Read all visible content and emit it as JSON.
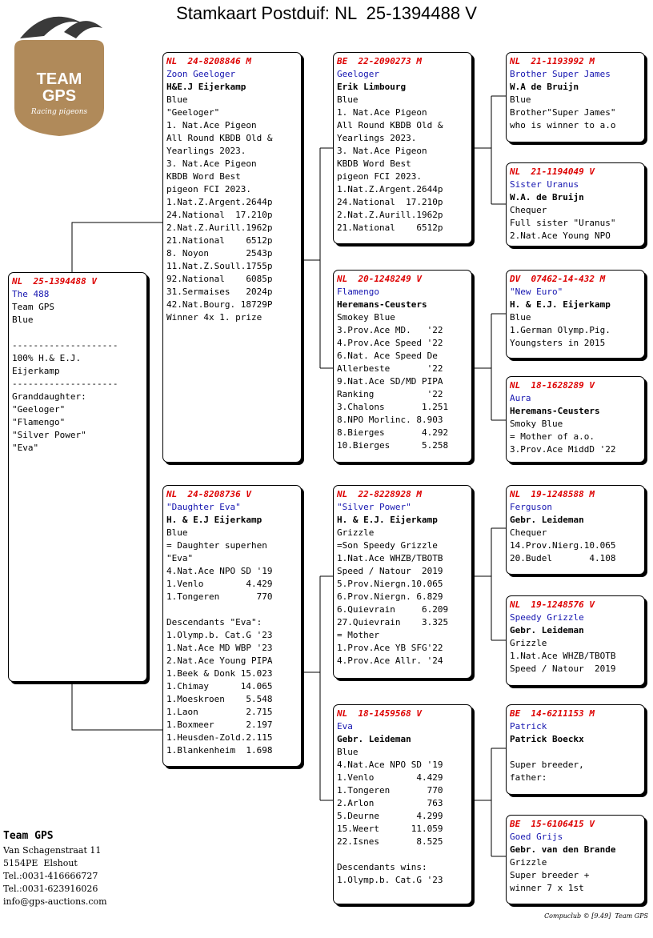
{
  "header": {
    "title": "Stamkaart Postduif: NL  25-1394488 V"
  },
  "logo": {
    "line1": "TEAM",
    "line2": "GPS",
    "tagline": "Racing pigeons"
  },
  "boxes": [
    {
      "ring": "NL  25-1394488 V",
      "name": "The 488",
      "paragraphs": [
        [
          "Team GPS",
          "Blue"
        ],
        [
          "--------------------",
          "100% H.& E.J.",
          "Eijerkamp",
          "--------------------",
          "Granddaughter:",
          "\"Geeloger\"",
          "\"Flamengo\"",
          "\"Silver Power\"",
          "\"Eva\""
        ]
      ]
    },
    {
      "ring": "NL  24-8208846 M",
      "name": "Zoon Geeloger",
      "owner": "H&E.J Eijerkamp",
      "paragraphs": [
        [
          "Blue",
          "\"Geeloger\"",
          "1. Nat.Ace Pigeon",
          "All Round KBDB Old &",
          "Yearlings 2023.",
          "3. Nat.Ace Pigeon",
          "KBDB Word Best",
          "pigeon FCI 2023.",
          "1.Nat.Z.Argent.2644p",
          "24.National  17.210p",
          "2.Nat.Z.Aurill.1962p",
          "21.National    6512p",
          "8. Noyon       2543p",
          "11.Nat.Z.Soull.1755p",
          "92.National    6085p",
          "31.Sermaises   2024p",
          "42.Nat.Bourg. 18729P",
          "Winner 4x 1. prize"
        ]
      ]
    },
    {
      "ring": "NL  24-8208736 V",
      "name": "\"Daughter Eva\"",
      "owner": "H. & E.J Eijerkamp",
      "paragraphs": [
        [
          "Blue",
          "= Daughter superhen",
          "\"Eva\"",
          "4.Nat.Ace NPO SD '19",
          "1.Venlo        4.429",
          "1.Tongeren       770"
        ],
        [
          "Descendants \"Eva\":",
          "1.Olymp.b. Cat.G '23",
          "1.Nat.Ace MD WBP '23",
          "2.Nat.Ace Young PIPA",
          "1.Beek & Donk 15.023",
          "1.Chimay      14.065",
          "1.Moeskroen    5.548",
          "1.Laon         2.715",
          "1.Boxmeer      2.197",
          "1.Heusden-Zold.2.115",
          "1.Blankenheim  1.698"
        ]
      ]
    },
    {
      "ring": "BE  22-2090273 M",
      "name": "Geeloger",
      "owner": "Erik Limbourg",
      "paragraphs": [
        [
          "Blue",
          "1. Nat.Ace Pigeon",
          "All Round KBDB Old &",
          "Yearlings 2023.",
          "3. Nat.Ace Pigeon",
          "KBDB Word Best",
          "pigeon FCI 2023.",
          "1.Nat.Z.Argent.2644p",
          "24.National  17.210p",
          "2.Nat.Z.Aurill.1962p",
          "21.National    6512p"
        ]
      ]
    },
    {
      "ring": "NL  20-1248249 V",
      "name": "Flamengo",
      "owner": "Heremans-Ceusters",
      "paragraphs": [
        [
          "Smokey Blue",
          "3.Prov.Ace MD.   '22",
          "4.Prov.Ace Speed '22",
          "6.Nat. Ace Speed De",
          "Allerbeste       '22",
          "9.Nat.Ace SD/MD PIPA",
          "Ranking          '22",
          "3.Chalons       1.251",
          "8.NPO Morlinc. 8.903",
          "8.Bierges       4.292",
          "10.Bierges      5.258"
        ]
      ]
    },
    {
      "ring": "NL  22-8228928 M",
      "name": "\"Silver Power\"",
      "owner": "H. & E.J. Eijerkamp",
      "paragraphs": [
        [
          "Grizzle",
          "=Son Speedy Grizzle",
          "1.Nat.Ace WHZB/TBOTB",
          "Speed / Natour  2019",
          "5.Prov.Niergn.10.065",
          "6.Prov.Niergn. 6.829",
          "6.Quievrain     6.209",
          "27.Quievrain    3.325",
          "= Mother",
          "1.Prov.Ace YB SFG'22",
          "4.Prov.Ace Allr. '24"
        ]
      ]
    },
    {
      "ring": "NL  18-1459568 V",
      "name": "Eva",
      "owner": "Gebr. Leideman",
      "paragraphs": [
        [
          "Blue",
          "4.Nat.Ace NPO SD '19",
          "1.Venlo        4.429",
          "1.Tongeren       770",
          "2.Arlon          763",
          "5.Deurne       4.299",
          "15.Weert      11.059",
          "22.Isnes       8.525"
        ],
        [
          "Descendants wins:",
          "1.Olymp.b. Cat.G '23"
        ]
      ]
    },
    {
      "ring": "NL  21-1193992 M",
      "name": "Brother Super James",
      "owner": "W.A de Bruijn",
      "paragraphs": [
        [
          "Blue",
          "Brother\"Super James\"",
          "who is winner to a.o"
        ]
      ]
    },
    {
      "ring": "NL  21-1194049 V",
      "name": "Sister Uranus",
      "owner": "W.A. de Bruijn",
      "paragraphs": [
        [
          "Chequer",
          "Full sister \"Uranus\"",
          "2.Nat.Ace Young NPO"
        ]
      ]
    },
    {
      "ring": "DV  07462-14-432 M",
      "name": "\"New Euro\"",
      "owner": "H. & E.J. Eijerkamp",
      "paragraphs": [
        [
          "Blue",
          "1.German Olymp.Pig.",
          "Youngsters in 2015"
        ]
      ]
    },
    {
      "ring": "NL  18-1628289 V",
      "name": "Aura",
      "owner": "Heremans-Ceusters",
      "paragraphs": [
        [
          "Smoky Blue",
          "= Mother of a.o.",
          "3.Prov.Ace MiddD '22"
        ]
      ]
    },
    {
      "ring": "NL  19-1248588 M",
      "name": "Ferguson",
      "owner": "Gebr. Leideman",
      "paragraphs": [
        [
          "Chequer",
          "14.Prov.Nierg.10.065",
          "20.Budel       4.108"
        ]
      ]
    },
    {
      "ring": "NL  19-1248576 V",
      "name": "Speedy Grizzle",
      "owner": "Gebr. Leideman",
      "paragraphs": [
        [
          "Grizzle",
          "1.Nat.Ace WHZB/TBOTB",
          "Speed / Natour  2019"
        ]
      ]
    },
    {
      "ring": "BE  14-6211153 M",
      "name": "Patrick",
      "owner": "Patrick Boeckx",
      "paragraphs": [
        [
          "Super breeder,",
          "father:"
        ]
      ]
    },
    {
      "ring": "BE  15-6106415 V",
      "name": "Goed Grijs",
      "owner": "Gebr. van den Brande",
      "paragraphs": [
        [
          "Grizzle",
          "Super breeder +",
          "winner 7 x 1st"
        ]
      ]
    }
  ],
  "footer": {
    "company": "Team GPS",
    "address": [
      "Van Schagenstraat 11",
      "5154PE  Elshout",
      "Tel.:0031-416666727",
      "Tel.:0031-623916026",
      "info@gps-auctions.com"
    ],
    "credit": "Compuclub © [9.49]  Team GPS"
  }
}
